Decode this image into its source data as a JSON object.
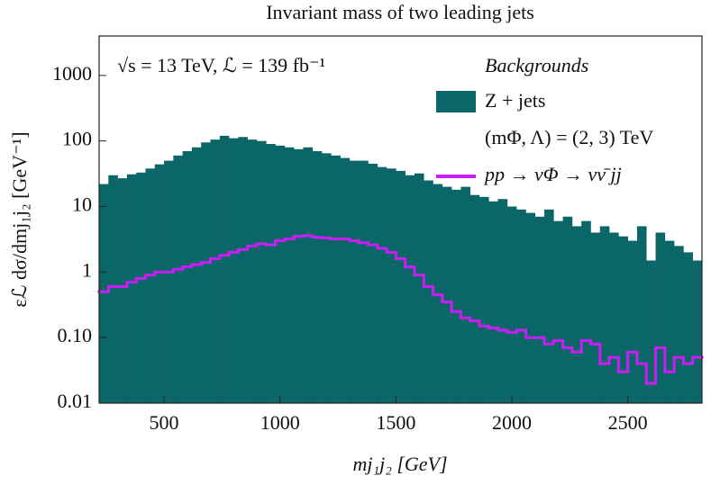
{
  "chart_data": {
    "type": "histogram",
    "title": "Invariant mass of two leading jets",
    "x_label": "mj₁j₂ [GeV]",
    "y_label": "εℒ dσ/dmj₁j₂ [GeV⁻¹]",
    "annotations": [
      "√s = 13 TeV,  ℒ = 139 fb⁻¹",
      "Backgrounds",
      "(mΦ, Λ) = (2, 3) TeV"
    ],
    "log_y": true,
    "bins": [
      220,
      260,
      300,
      340,
      380,
      420,
      460,
      500,
      540,
      580,
      620,
      660,
      700,
      740,
      780,
      820,
      860,
      900,
      940,
      980,
      1020,
      1060,
      1100,
      1140,
      1180,
      1220,
      1260,
      1300,
      1340,
      1380,
      1420,
      1460,
      1500,
      1540,
      1580,
      1620,
      1660,
      1700,
      1740,
      1780,
      1820,
      1860,
      1900,
      1940,
      1980,
      2020,
      2060,
      2100,
      2140,
      2180,
      2220,
      2260,
      2300,
      2340,
      2380,
      2420,
      2460,
      2500,
      2540,
      2580,
      2620,
      2660,
      2700,
      2740,
      2780,
      2820
    ],
    "series": [
      {
        "name": "Z + jets",
        "color": "#0b6767",
        "style": "filled",
        "values": [
          22,
          30,
          27,
          31,
          33,
          38,
          44,
          50,
          60,
          70,
          80,
          95,
          105,
          120,
          110,
          115,
          105,
          100,
          90,
          85,
          80,
          75,
          80,
          70,
          65,
          60,
          55,
          50,
          50,
          45,
          40,
          38,
          35,
          30,
          32,
          25,
          22,
          20,
          18,
          20,
          15,
          14,
          12,
          13,
          10,
          9,
          8,
          7,
          9,
          6,
          7,
          5,
          6,
          4,
          5,
          4,
          3.5,
          3,
          5,
          1.5,
          4,
          3,
          2.5,
          2,
          1.5
        ]
      },
      {
        "name": "pp → νΦ → νν̄ jj",
        "color": "#c81ef5",
        "style": "step",
        "values": [
          0.5,
          0.6,
          0.6,
          0.7,
          0.8,
          0.9,
          1.0,
          1.0,
          1.1,
          1.2,
          1.3,
          1.4,
          1.6,
          1.8,
          2.0,
          2.2,
          2.5,
          2.7,
          2.6,
          3.0,
          3.2,
          3.5,
          3.6,
          3.4,
          3.3,
          3.2,
          3.2,
          3.0,
          2.8,
          2.6,
          2.3,
          2.0,
          1.6,
          1.2,
          0.9,
          0.6,
          0.45,
          0.35,
          0.25,
          0.2,
          0.18,
          0.15,
          0.14,
          0.13,
          0.12,
          0.13,
          0.1,
          0.1,
          0.08,
          0.09,
          0.07,
          0.06,
          0.09,
          0.08,
          0.04,
          0.05,
          0.03,
          0.06,
          0.04,
          0.02,
          0.07,
          0.03,
          0.05,
          0.04,
          0.05
        ]
      }
    ],
    "xlim": [
      220,
      2820
    ],
    "ylim": [
      0.01,
      4000
    ],
    "xticks": [
      500,
      1000,
      1500,
      2000,
      2500
    ],
    "yticks": [
      0.01,
      {
        "value": 0.1,
        "label": "0.10"
      },
      1,
      10,
      100,
      1000
    ]
  }
}
